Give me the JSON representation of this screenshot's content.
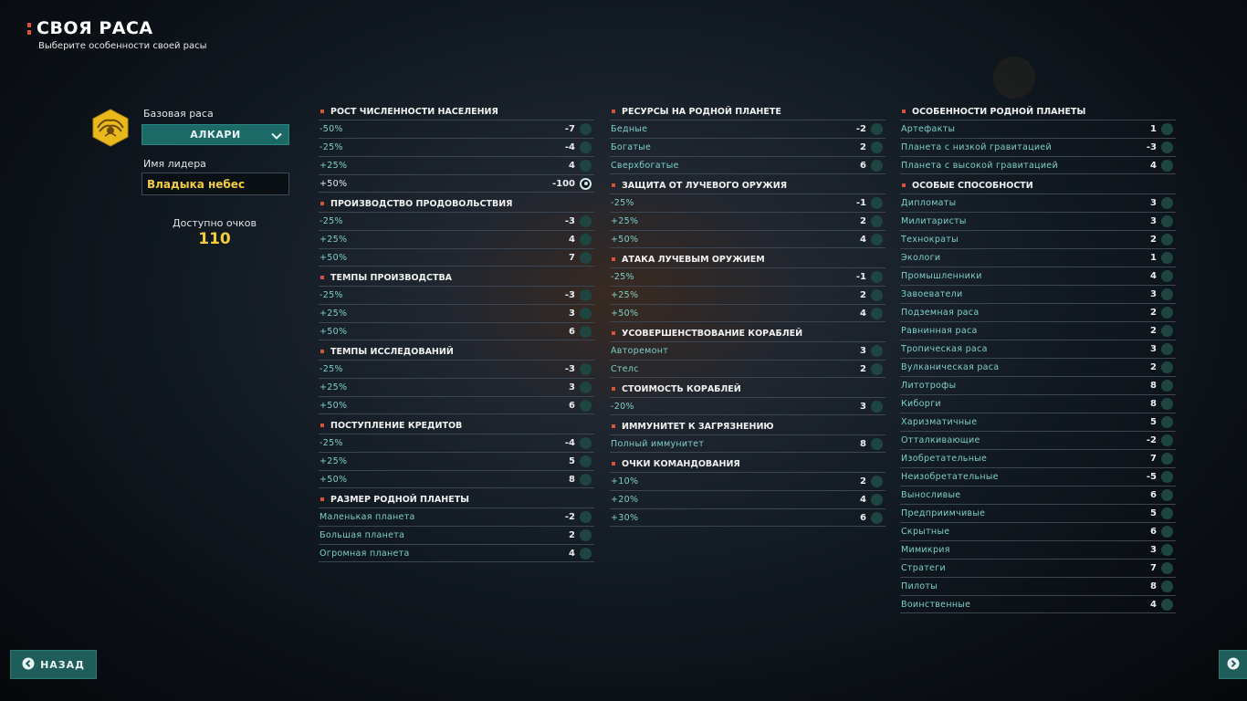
{
  "header": {
    "title": "СВОЯ РАСА",
    "subtitle": "Выберите особенности своей расы"
  },
  "left_panel": {
    "base_race_label": "Базовая раса",
    "base_race_value": "АЛКАРИ",
    "leader_label": "Имя лидера",
    "leader_value": "Владыка небес",
    "points_label": "Доступно очков",
    "points_value": "110",
    "emblem_icon": "alkari-emblem-icon"
  },
  "columns": [
    {
      "sections": [
        {
          "title": "РОСТ ЧИСЛЕННОСТИ НАСЕЛЕНИЯ",
          "options": [
            {
              "label": "-50%",
              "cost": "-7",
              "selected": false
            },
            {
              "label": "-25%",
              "cost": "-4",
              "selected": false
            },
            {
              "label": "+25%",
              "cost": "4",
              "selected": false
            },
            {
              "label": "+50%",
              "cost": "-100",
              "selected": true
            }
          ]
        },
        {
          "title": "ПРОИЗВОДСТВО ПРОДОВОЛЬСТВИЯ",
          "options": [
            {
              "label": "-25%",
              "cost": "-3",
              "selected": false
            },
            {
              "label": "+25%",
              "cost": "4",
              "selected": false
            },
            {
              "label": "+50%",
              "cost": "7",
              "selected": false
            }
          ]
        },
        {
          "title": "ТЕМПЫ ПРОИЗВОДСТВА",
          "options": [
            {
              "label": "-25%",
              "cost": "-3",
              "selected": false
            },
            {
              "label": "+25%",
              "cost": "3",
              "selected": false
            },
            {
              "label": "+50%",
              "cost": "6",
              "selected": false
            }
          ]
        },
        {
          "title": "ТЕМПЫ ИССЛЕДОВАНИЙ",
          "options": [
            {
              "label": "-25%",
              "cost": "-3",
              "selected": false
            },
            {
              "label": "+25%",
              "cost": "3",
              "selected": false
            },
            {
              "label": "+50%",
              "cost": "6",
              "selected": false
            }
          ]
        },
        {
          "title": "ПОСТУПЛЕНИЕ КРЕДИТОВ",
          "options": [
            {
              "label": "-25%",
              "cost": "-4",
              "selected": false
            },
            {
              "label": "+25%",
              "cost": "5",
              "selected": false
            },
            {
              "label": "+50%",
              "cost": "8",
              "selected": false
            }
          ]
        },
        {
          "title": "РАЗМЕР РОДНОЙ ПЛАНЕТЫ",
          "options": [
            {
              "label": "Маленькая планета",
              "cost": "-2",
              "selected": false
            },
            {
              "label": "Большая планета",
              "cost": "2",
              "selected": false
            },
            {
              "label": "Огромная планета",
              "cost": "4",
              "selected": false
            }
          ]
        }
      ]
    },
    {
      "sections": [
        {
          "title": "РЕСУРСЫ НА РОДНОЙ ПЛАНЕТЕ",
          "options": [
            {
              "label": "Бедные",
              "cost": "-2",
              "selected": false
            },
            {
              "label": "Богатые",
              "cost": "2",
              "selected": false
            },
            {
              "label": "Сверхбогатые",
              "cost": "6",
              "selected": false
            }
          ]
        },
        {
          "title": "ЗАЩИТА ОТ ЛУЧЕВОГО ОРУЖИЯ",
          "options": [
            {
              "label": "-25%",
              "cost": "-1",
              "selected": false
            },
            {
              "label": "+25%",
              "cost": "2",
              "selected": false
            },
            {
              "label": "+50%",
              "cost": "4",
              "selected": false
            }
          ]
        },
        {
          "title": "АТАКА ЛУЧЕВЫМ ОРУЖИЕМ",
          "options": [
            {
              "label": "-25%",
              "cost": "-1",
              "selected": false
            },
            {
              "label": "+25%",
              "cost": "2",
              "selected": false
            },
            {
              "label": "+50%",
              "cost": "4",
              "selected": false
            }
          ]
        },
        {
          "title": "УСОВЕРШЕНСТВОВАНИЕ КОРАБЛЕЙ",
          "options": [
            {
              "label": "Авторемонт",
              "cost": "3",
              "selected": false
            },
            {
              "label": "Стелс",
              "cost": "2",
              "selected": false
            }
          ]
        },
        {
          "title": "СТОИМОСТЬ КОРАБЛЕЙ",
          "options": [
            {
              "label": "-20%",
              "cost": "3",
              "selected": false
            }
          ]
        },
        {
          "title": "ИММУНИТЕТ К ЗАГРЯЗНЕНИЮ",
          "options": [
            {
              "label": "Полный иммунитет",
              "cost": "8",
              "selected": false
            }
          ]
        },
        {
          "title": "ОЧКИ КОМАНДОВАНИЯ",
          "options": [
            {
              "label": "+10%",
              "cost": "2",
              "selected": false
            },
            {
              "label": "+20%",
              "cost": "4",
              "selected": false
            },
            {
              "label": "+30%",
              "cost": "6",
              "selected": false
            }
          ]
        }
      ]
    },
    {
      "sections": [
        {
          "title": "ОСОБЕННОСТИ РОДНОЙ ПЛАНЕТЫ",
          "options": [
            {
              "label": "Артефакты",
              "cost": "1",
              "selected": false
            },
            {
              "label": "Планета с низкой гравитацией",
              "cost": "-3",
              "selected": false
            },
            {
              "label": "Планета с высокой гравитацией",
              "cost": "4",
              "selected": false
            }
          ]
        },
        {
          "title": "ОСОБЫЕ СПОСОБНОСТИ",
          "options": [
            {
              "label": "Дипломаты",
              "cost": "3",
              "selected": false
            },
            {
              "label": "Милитаристы",
              "cost": "3",
              "selected": false
            },
            {
              "label": "Технократы",
              "cost": "2",
              "selected": false
            },
            {
              "label": "Экологи",
              "cost": "1",
              "selected": false
            },
            {
              "label": "Промышленники",
              "cost": "4",
              "selected": false
            },
            {
              "label": "Завоеватели",
              "cost": "3",
              "selected": false
            },
            {
              "label": "Подземная раса",
              "cost": "2",
              "selected": false
            },
            {
              "label": "Равнинная раса",
              "cost": "2",
              "selected": false
            },
            {
              "label": "Тропическая раса",
              "cost": "3",
              "selected": false
            },
            {
              "label": "Вулканическая раса",
              "cost": "2",
              "selected": false
            },
            {
              "label": "Литотрофы",
              "cost": "8",
              "selected": false
            },
            {
              "label": "Киборги",
              "cost": "8",
              "selected": false
            },
            {
              "label": "Харизматичные",
              "cost": "5",
              "selected": false
            },
            {
              "label": "Отталкивающие",
              "cost": "-2",
              "selected": false
            },
            {
              "label": "Изобретательные",
              "cost": "7",
              "selected": false
            },
            {
              "label": "Неизобретательные",
              "cost": "-5",
              "selected": false
            },
            {
              "label": "Выносливые",
              "cost": "6",
              "selected": false
            },
            {
              "label": "Предприимчивые",
              "cost": "5",
              "selected": false
            },
            {
              "label": "Скрытные",
              "cost": "6",
              "selected": false
            },
            {
              "label": "Мимикрия",
              "cost": "3",
              "selected": false
            },
            {
              "label": "Стратеги",
              "cost": "7",
              "selected": false
            },
            {
              "label": "Пилоты",
              "cost": "8",
              "selected": false
            },
            {
              "label": "Воинственные",
              "cost": "4",
              "selected": false
            }
          ]
        }
      ]
    }
  ],
  "footer": {
    "back_label": "НАЗАД",
    "next_icon": "chevron-right-icon"
  },
  "colors": {
    "accent_teal": "#1e5d59",
    "title_marker": "#d8523a",
    "points_gold": "#f2cc3a",
    "option_text": "#7fcfc7"
  }
}
